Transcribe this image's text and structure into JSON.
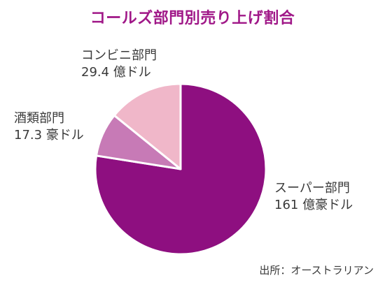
{
  "title": "コールズ部門別売り上げ割合",
  "source": "出所：オーストラリアン",
  "chart_data": {
    "type": "pie",
    "title": "コールズ部門別売り上げ割合",
    "unit": "豪ドル",
    "slices": [
      {
        "name": "スーパー部門",
        "value": 161,
        "value_label": "161 億豪ドル",
        "color": "#8e0f80"
      },
      {
        "name": "酒類部門",
        "value": 17.3,
        "value_label": "17.3 豪ドル",
        "color": "#c77ab6"
      },
      {
        "name": "コンビニ部門",
        "value": 29.4,
        "value_label": "29.4 億ドル",
        "color": "#f0b7c9"
      }
    ]
  }
}
